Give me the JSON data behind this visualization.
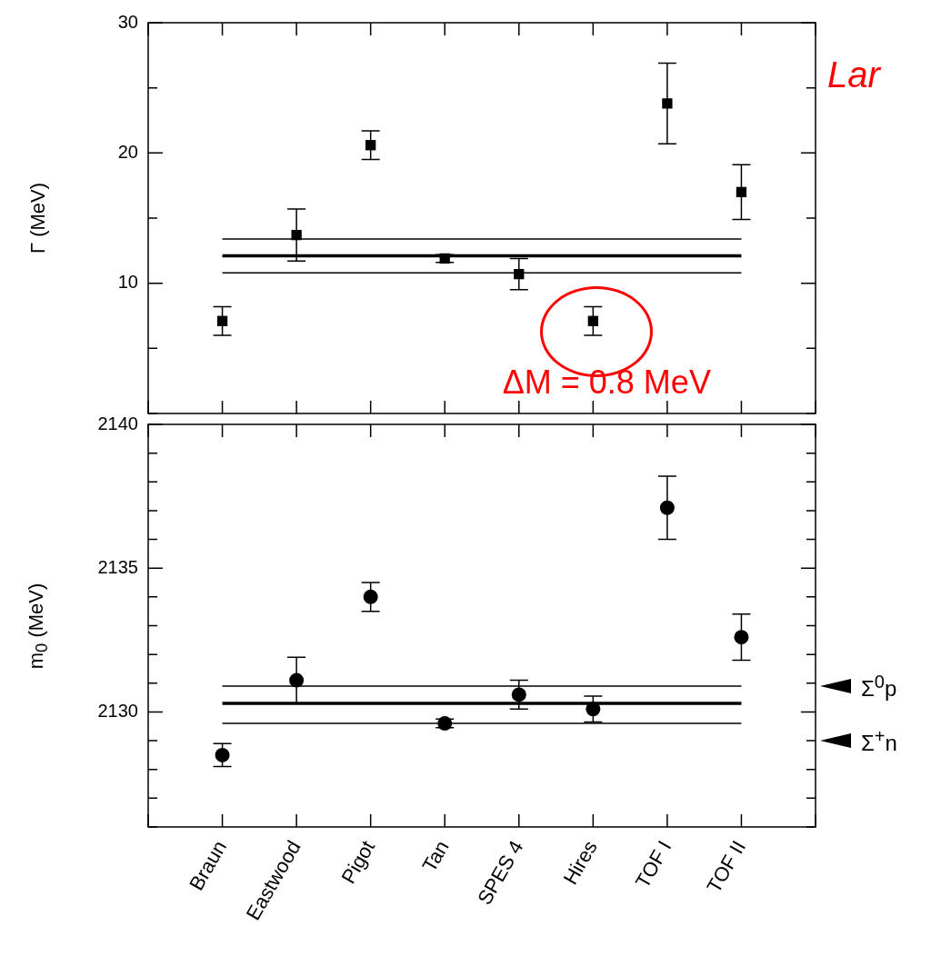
{
  "chart_data": [
    {
      "type": "scatter",
      "ylabel": "Γ (MeV)",
      "categories": [
        null,
        "Braun",
        "Eastwood",
        "Pigot",
        "Tan",
        "SPES 4",
        "Hires",
        "TOF I",
        "TOF II",
        null
      ],
      "tick_labels": "y",
      "ylim": [
        0,
        30
      ],
      "yticks": [
        {
          "value": 0,
          "label": null
        },
        {
          "value": 5,
          "label": null
        },
        10,
        {
          "value": 15,
          "label": null
        },
        20,
        {
          "value": 25,
          "label": null
        },
        30
      ],
      "series": [
        {
          "color": "#000000",
          "marker": "square",
          "values": [
            null,
            7.1,
            13.7,
            20.6,
            11.9,
            10.7,
            7.1,
            23.8,
            17.0,
            null
          ],
          "errors": [
            null,
            1.1,
            2.0,
            1.1,
            0.3,
            1.2,
            1.1,
            3.1,
            2.1,
            null
          ]
        },
        {
          "type": "line",
          "color": "#000000",
          "marker": "none",
          "values": [
            null,
            12.1,
            12.1,
            12.1,
            12.1,
            12.1,
            12.1,
            12.1,
            12.1,
            null
          ]
        },
        {
          "type": "line",
          "color": "#000000",
          "marker": "none",
          "values": [
            null,
            13.4,
            13.4,
            13.4,
            13.4,
            13.4,
            13.4,
            13.4,
            13.4,
            null
          ]
        },
        {
          "type": "line",
          "color": "#000000",
          "marker": "none",
          "values": [
            null,
            10.8,
            10.8,
            10.8,
            10.8,
            10.8,
            10.8,
            10.8,
            10.8,
            null
          ]
        }
      ],
      "annotations": [
        {
          "text": "ΔM = 0.8 MeV",
          "x": "Hires",
          "y": 7.1
        },
        "Lar"
      ]
    },
    {
      "type": "scatter",
      "ylabel": "m$_{0}$ (MeV)",
      "categories": [
        null,
        "Braun",
        "Eastwood",
        "Pigot",
        "Tan",
        "SPES 4",
        "Hires",
        "TOF I",
        "TOF II",
        null
      ],
      "ylim": [
        2126,
        2140
      ],
      "yticks": [
        {
          "value": 2126,
          "label": null
        },
        {
          "value": 2127,
          "label": null
        },
        {
          "value": 2128,
          "label": null
        },
        {
          "value": 2129,
          "label": null
        },
        2130,
        {
          "value": 2131,
          "label": null
        },
        {
          "value": 2132,
          "label": null
        },
        {
          "value": 2133,
          "label": null
        },
        {
          "value": 2134,
          "label": null
        },
        2135,
        {
          "value": 2136,
          "label": null
        },
        {
          "value": 2137,
          "label": null
        },
        {
          "value": 2138,
          "label": null
        },
        {
          "value": 2139,
          "label": null
        },
        2140
      ],
      "series": [
        {
          "color": "#000000",
          "marker": "circle",
          "values": [
            null,
            2128.5,
            2131.1,
            2134.0,
            2129.6,
            2130.6,
            2130.1,
            2137.1,
            2132.6,
            null
          ],
          "errors": [
            null,
            0.4,
            0.8,
            0.5,
            0.15,
            0.5,
            0.45,
            1.1,
            0.8,
            null
          ]
        },
        {
          "type": "line",
          "color": "#000000",
          "marker": "none",
          "values": [
            null,
            2130.3,
            2130.3,
            2130.3,
            2130.3,
            2130.3,
            2130.3,
            2130.3,
            2130.3,
            null
          ]
        },
        {
          "type": "line",
          "color": "#000000",
          "marker": "none",
          "values": [
            null,
            2130.9,
            2130.9,
            2130.9,
            2130.9,
            2130.9,
            2130.9,
            2130.9,
            2130.9,
            null
          ]
        },
        {
          "type": "line",
          "color": "#000000",
          "marker": "none",
          "values": [
            null,
            2129.6,
            2129.6,
            2129.6,
            2129.6,
            2129.6,
            2129.6,
            2129.6,
            2129.6,
            null
          ]
        }
      ],
      "annotations": [
        "Σ$^{0}$p",
        "Σ$^{+}$n"
      ]
    }
  ]
}
